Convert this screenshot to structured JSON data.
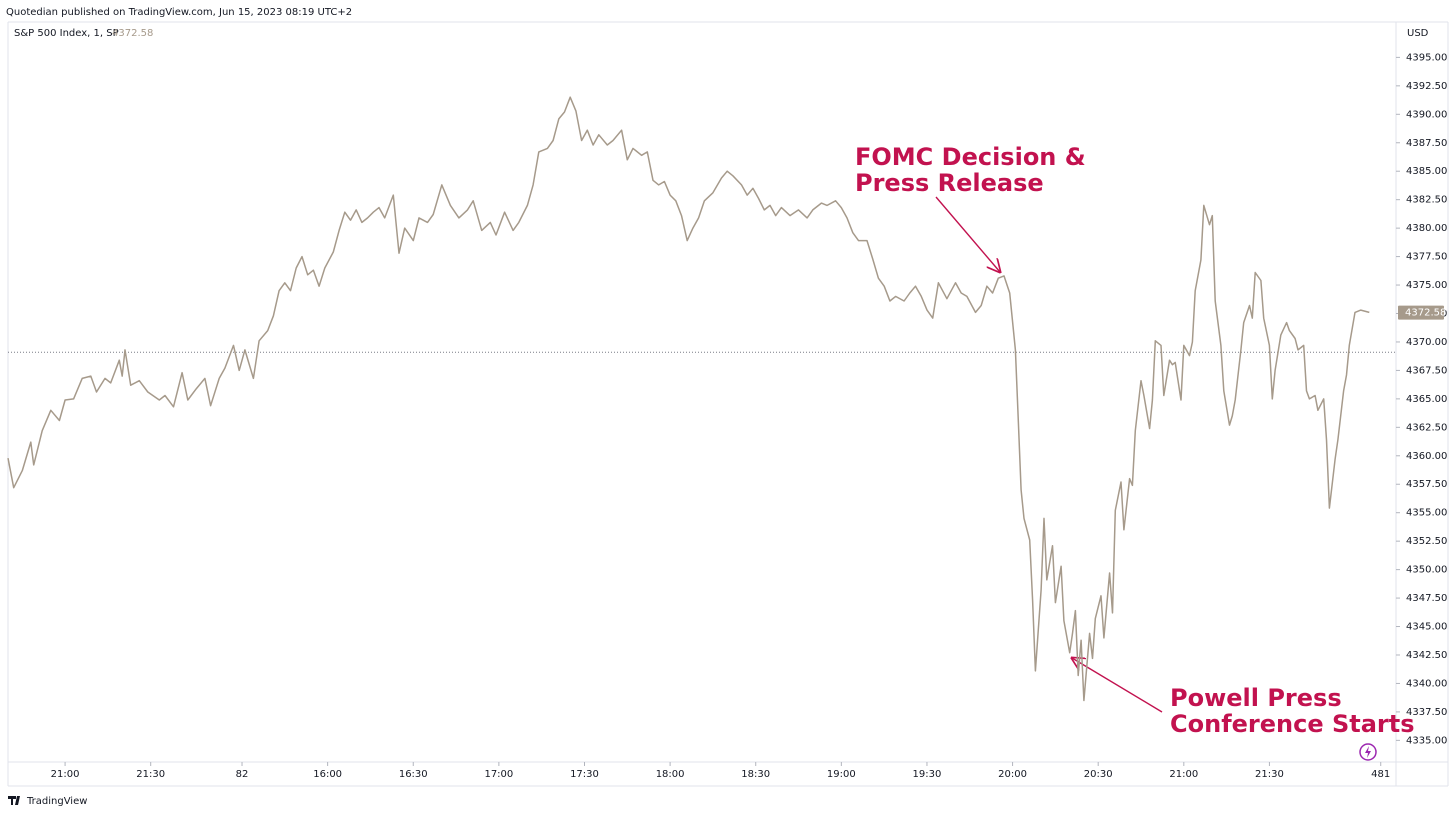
{
  "chart_data": {
    "type": "line",
    "header": "Quotedian published on TradingView.com, Jun 15, 2023 08:19 UTC+2",
    "legend_title": "S&P 500 Index, 1, SP",
    "currency": "USD",
    "footer": "TradingView",
    "last_value": {
      "value": 4372.58,
      "label": "4372.58"
    },
    "reference_line": 4369.1,
    "annotations": [
      {
        "lines": [
          "FOMC Decision &",
          "Press Release"
        ]
      },
      {
        "lines": [
          "Powell Press",
          "Conference Starts"
        ]
      }
    ],
    "x": [
      0,
      2,
      5,
      8,
      9,
      12,
      15,
      18,
      20,
      23,
      26,
      29,
      31,
      34,
      36,
      39,
      40,
      41,
      43,
      46,
      49,
      53,
      55,
      58,
      61,
      63,
      66,
      69,
      71,
      74,
      76,
      79,
      81,
      83,
      86,
      88,
      91,
      93,
      95,
      97,
      99,
      101,
      103,
      105,
      107,
      109,
      111,
      114,
      116,
      118,
      120,
      122,
      124,
      126,
      128,
      130,
      132,
      135,
      137,
      139,
      142,
      144,
      147,
      149,
      152,
      155,
      158,
      161,
      163,
      166,
      169,
      171,
      174,
      177,
      179,
      182,
      184,
      186,
      189,
      191,
      193,
      195,
      197,
      199,
      201,
      203,
      205,
      207,
      210,
      212,
      215,
      217,
      219,
      222,
      224,
      226,
      228,
      230,
      232,
      234,
      236,
      238,
      240,
      242,
      244,
      247,
      250,
      252,
      254,
      257,
      259,
      261,
      263,
      265,
      267,
      269,
      271,
      274,
      277,
      280,
      282,
      285,
      287,
      290,
      292,
      294,
      296,
      298,
      301,
      303,
      305,
      307,
      309,
      311,
      314,
      316,
      318,
      320,
      322,
      324,
      326,
      329,
      332,
      334,
      336,
      339,
      341,
      343,
      345,
      347,
      349,
      351,
      353,
      354,
      355,
      356,
      358,
      359,
      360,
      362,
      363,
      364,
      366,
      367,
      369,
      370,
      372,
      373,
      374,
      375,
      376,
      377,
      379,
      380,
      381,
      383,
      384,
      386,
      387,
      388,
      390,
      391,
      393,
      394,
      395,
      397,
      398,
      400,
      401,
      402,
      404,
      405,
      407,
      408,
      409,
      411,
      412,
      414,
      415,
      416,
      418,
      419,
      421,
      422,
      423,
      425,
      426,
      428,
      429,
      430,
      432,
      433,
      435,
      436,
      437,
      439,
      440,
      442,
      443,
      444,
      446,
      448,
      449,
      451,
      452,
      454,
      455,
      456,
      458,
      459,
      461,
      462,
      463,
      465,
      466,
      468,
      469,
      470,
      472,
      474,
      477
    ],
    "series": [
      {
        "name": "S&P 500 Index",
        "color": "#a69a8b",
        "values": [
          4359.8,
          4357.2,
          4358.7,
          4361.2,
          4359.2,
          4362.2,
          4364.0,
          4363.1,
          4364.9,
          4365.0,
          4366.8,
          4367.0,
          4365.6,
          4366.8,
          4366.4,
          4368.4,
          4367.0,
          4369.3,
          4366.2,
          4366.6,
          4365.6,
          4364.9,
          4365.3,
          4364.3,
          4367.3,
          4364.9,
          4365.9,
          4366.8,
          4364.4,
          4366.8,
          4367.7,
          4369.7,
          4367.5,
          4369.3,
          4366.8,
          4370.1,
          4371.0,
          4372.3,
          4374.5,
          4375.2,
          4374.5,
          4376.5,
          4377.5,
          4375.9,
          4376.3,
          4374.9,
          4376.5,
          4377.9,
          4379.8,
          4381.4,
          4380.7,
          4381.6,
          4380.5,
          4380.9,
          4381.4,
          4381.8,
          4380.9,
          4382.9,
          4377.8,
          4380.0,
          4378.9,
          4380.9,
          4380.5,
          4381.2,
          4383.8,
          4382.0,
          4380.9,
          4381.6,
          4382.4,
          4379.8,
          4380.5,
          4379.4,
          4381.4,
          4379.8,
          4380.5,
          4382.0,
          4383.8,
          4386.7,
          4387.0,
          4387.7,
          4389.6,
          4390.2,
          4391.5,
          4390.3,
          4387.7,
          4388.6,
          4387.3,
          4388.2,
          4387.3,
          4387.7,
          4388.6,
          4386.0,
          4387.0,
          4386.4,
          4386.7,
          4384.2,
          4383.8,
          4384.1,
          4382.9,
          4382.4,
          4381.1,
          4378.9,
          4380.0,
          4380.9,
          4382.4,
          4383.1,
          4384.4,
          4385.0,
          4384.6,
          4383.8,
          4382.9,
          4383.5,
          4382.6,
          4381.6,
          4382.0,
          4381.1,
          4381.8,
          4381.1,
          4381.6,
          4380.9,
          4381.6,
          4382.2,
          4382.0,
          4382.4,
          4381.8,
          4380.9,
          4379.6,
          4378.9,
          4378.9,
          4377.3,
          4375.6,
          4374.9,
          4373.6,
          4374.0,
          4373.6,
          4374.3,
          4374.9,
          4374.0,
          4372.8,
          4372.1,
          4375.2,
          4373.8,
          4375.2,
          4374.3,
          4374.0,
          4372.6,
          4373.2,
          4374.9,
          4374.3,
          4375.6,
          4375.8,
          4374.3,
          4369.3,
          4363.1,
          4357.0,
          4354.5,
          4352.6,
          4347.3,
          4341.1,
          4348.2,
          4354.5,
          4349.1,
          4352.1,
          4347.1,
          4350.3,
          4345.5,
          4342.7,
          4344.4,
          4346.4,
          4340.7,
          4343.8,
          4338.5,
          4344.4,
          4342.2,
          4345.7,
          4347.7,
          4344.0,
          4349.7,
          4346.2,
          4355.2,
          4357.7,
          4353.5,
          4358.0,
          4357.4,
          4362.2,
          4366.6,
          4365.3,
          4362.4,
          4364.9,
          4370.1,
          4369.7,
          4365.3,
          4368.4,
          4368.0,
          4368.2,
          4364.9,
          4369.7,
          4368.8,
          4370.0,
          4374.5,
          4377.2,
          4382.0,
          4380.3,
          4381.1,
          4373.6,
          4369.7,
          4365.7,
          4362.7,
          4363.5,
          4364.9,
          4369.3,
          4371.7,
          4373.2,
          4372.1,
          4376.1,
          4375.4,
          4372.1,
          4369.7,
          4365.0,
          4367.5,
          4370.6,
          4371.7,
          4371.0,
          4370.3,
          4369.3,
          4369.7,
          4365.7,
          4365.0,
          4365.3,
          4364.0,
          4365.0,
          4361.4,
          4355.4,
          4359.7,
          4361.4,
          4365.7,
          4367.1,
          4369.7,
          4372.6,
          4372.8,
          4372.6
        ]
      }
    ],
    "xlim": [
      0,
      486
    ],
    "xticks": [
      {
        "value": 20,
        "label": "21:00"
      },
      {
        "value": 50,
        "label": "21:30"
      },
      82,
      {
        "value": 112,
        "label": "16:00"
      },
      {
        "value": 142,
        "label": "16:30"
      },
      {
        "value": 172,
        "label": "17:00"
      },
      {
        "value": 202,
        "label": "17:30"
      },
      {
        "value": 232,
        "label": "18:00"
      },
      {
        "value": 262,
        "label": "18:30"
      },
      {
        "value": 292,
        "label": "19:00"
      },
      {
        "value": 322,
        "label": "19:30"
      },
      {
        "value": 352,
        "label": "20:00"
      },
      {
        "value": 382,
        "label": "20:30"
      },
      {
        "value": 412,
        "label": "21:00"
      },
      {
        "value": 442,
        "label": "21:30"
      },
      481
    ],
    "ylim": [
      4332.8,
      4399.4
    ],
    "yticks": [
      {
        "value": 4335,
        "label": "4335.00"
      },
      {
        "value": 4337.5,
        "label": "4337.50"
      },
      {
        "value": 4340,
        "label": "4340.00"
      },
      {
        "value": 4342.5,
        "label": "4342.50"
      },
      {
        "value": 4345,
        "label": "4345.00"
      },
      {
        "value": 4347.5,
        "label": "4347.50"
      },
      {
        "value": 4350,
        "label": "4350.00"
      },
      {
        "value": 4352.5,
        "label": "4352.50"
      },
      {
        "value": 4355,
        "label": "4355.00"
      },
      {
        "value": 4357.5,
        "label": "4357.50"
      },
      {
        "value": 4360,
        "label": "4360.00"
      },
      {
        "value": 4362.5,
        "label": "4362.50"
      },
      {
        "value": 4365,
        "label": "4365.00"
      },
      {
        "value": 4367.5,
        "label": "4367.50"
      },
      {
        "value": 4370,
        "label": "4370.00"
      },
      {
        "value": 4372.5,
        "label": "4372.50"
      },
      {
        "value": 4375,
        "label": "4375.00"
      },
      {
        "value": 4377.5,
        "label": "4377.50"
      },
      {
        "value": 4380,
        "label": "4380.00"
      },
      {
        "value": 4382.5,
        "label": "4382.50"
      },
      {
        "value": 4385,
        "label": "4385.00"
      },
      {
        "value": 4387.5,
        "label": "4387.50"
      },
      {
        "value": 4390,
        "label": "4390.00"
      },
      {
        "value": 4392.5,
        "label": "4392.50"
      },
      {
        "value": 4395,
        "label": "4395.00"
      }
    ],
    "grid": false
  }
}
